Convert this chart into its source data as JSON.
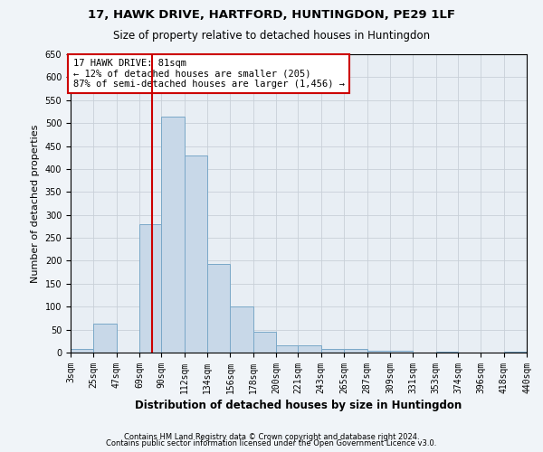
{
  "title1": "17, HAWK DRIVE, HARTFORD, HUNTINGDON, PE29 1LF",
  "title2": "Size of property relative to detached houses in Huntingdon",
  "xlabel": "Distribution of detached houses by size in Huntingdon",
  "ylabel": "Number of detached properties",
  "annotation_line1": "17 HAWK DRIVE: 81sqm",
  "annotation_line2": "← 12% of detached houses are smaller (205)",
  "annotation_line3": "87% of semi-detached houses are larger (1,456) →",
  "footer1": "Contains HM Land Registry data © Crown copyright and database right 2024.",
  "footer2": "Contains public sector information licensed under the Open Government Licence v3.0.",
  "bar_color": "#c8d8e8",
  "bar_edge_color": "#7aa8c8",
  "bin_edges": [
    3,
    25,
    47,
    69,
    90,
    112,
    134,
    156,
    178,
    200,
    221,
    243,
    265,
    287,
    309,
    331,
    353,
    374,
    396,
    418,
    440
  ],
  "bin_labels": [
    "3sqm",
    "25sqm",
    "47sqm",
    "69sqm",
    "90sqm",
    "112sqm",
    "134sqm",
    "156sqm",
    "178sqm",
    "200sqm",
    "221sqm",
    "243sqm",
    "265sqm",
    "287sqm",
    "309sqm",
    "331sqm",
    "353sqm",
    "374sqm",
    "396sqm",
    "418sqm",
    "440sqm"
  ],
  "bar_heights": [
    8,
    63,
    0,
    280,
    515,
    430,
    193,
    100,
    46,
    15,
    15,
    8,
    8,
    3,
    3,
    0,
    2,
    0,
    0,
    2
  ],
  "ylim": [
    0,
    650
  ],
  "yticks": [
    0,
    50,
    100,
    150,
    200,
    250,
    300,
    350,
    400,
    450,
    500,
    550,
    600,
    650
  ],
  "grid_color": "#c8d0d8",
  "plot_bg_color": "#e8eef4",
  "fig_bg_color": "#f0f4f8",
  "annotation_box_facecolor": "#ffffff",
  "annotation_box_edgecolor": "#cc0000",
  "vline_color": "#cc0000",
  "vline_x": 81,
  "title1_fontsize": 9.5,
  "title2_fontsize": 8.5,
  "ylabel_fontsize": 8,
  "xlabel_fontsize": 8.5,
  "tick_fontsize": 7,
  "ann_fontsize": 7.5,
  "footer_fontsize": 6
}
